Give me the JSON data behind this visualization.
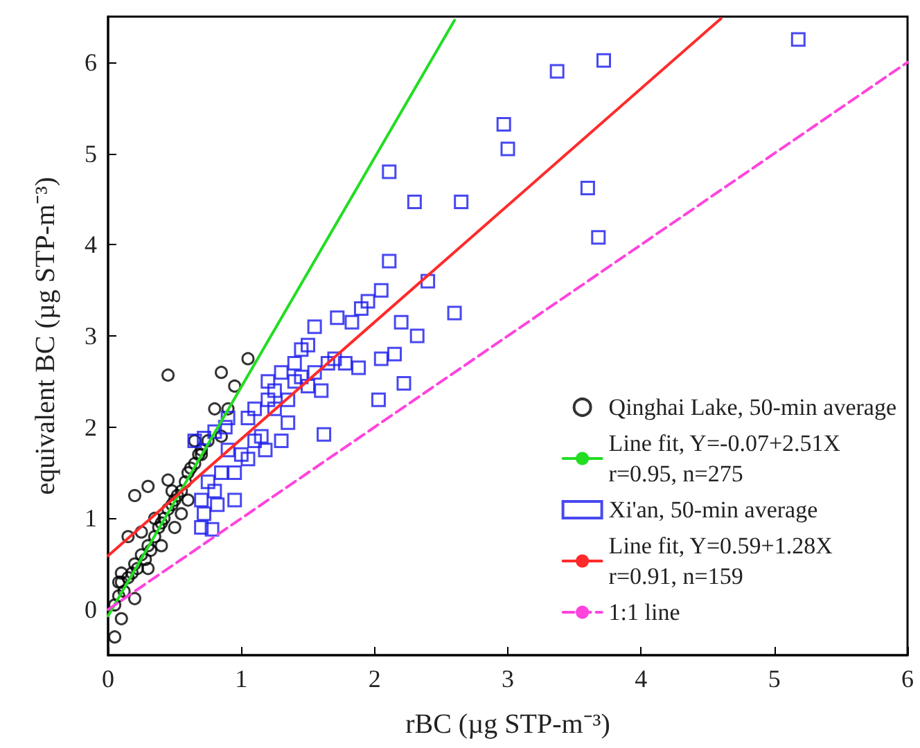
{
  "chart_data": {
    "type": "scatter",
    "xlabel": "rBC (µg STP-m⁻³)",
    "ylabel": "equivalent BC (µg STP-m⁻³)",
    "xlim": [
      0,
      6
    ],
    "xticks": [
      0,
      1,
      2,
      3,
      4,
      5,
      6
    ],
    "ylim": [
      -0.5,
      6.5
    ],
    "yticks": [
      0,
      1,
      2,
      3,
      4,
      5,
      6
    ],
    "grid": false,
    "legend": "right",
    "series": [
      {
        "name": "Qinghai Lake, 50-min average",
        "color": "#000000",
        "marker": "circle",
        "x": [
          0.05,
          0.08,
          0.1,
          0.12,
          0.15,
          0.18,
          0.2,
          0.22,
          0.25,
          0.28,
          0.3,
          0.32,
          0.35,
          0.38,
          0.4,
          0.42,
          0.45,
          0.48,
          0.5,
          0.52,
          0.55,
          0.58,
          0.6,
          0.62,
          0.65,
          0.68,
          0.7,
          0.48,
          0.45,
          0.5,
          0.4,
          0.3,
          0.2,
          0.1,
          0.08,
          0.35,
          0.25,
          0.55,
          0.6,
          0.75,
          0.45,
          0.85,
          1.05,
          0.05,
          0.1,
          0.2,
          0.3,
          0.15,
          0.95,
          0.8,
          0.9,
          0.85,
          0.65,
          0.7
        ],
        "values": [
          0.05,
          0.15,
          0.3,
          0.2,
          0.35,
          0.4,
          0.5,
          0.45,
          0.6,
          0.55,
          0.7,
          0.65,
          0.8,
          0.9,
          0.95,
          1.0,
          1.1,
          1.15,
          1.2,
          1.25,
          1.3,
          1.4,
          1.5,
          1.55,
          1.6,
          1.7,
          1.75,
          1.3,
          1.42,
          0.9,
          0.7,
          0.45,
          0.12,
          0.4,
          0.3,
          1.0,
          0.85,
          1.05,
          1.2,
          1.85,
          2.57,
          2.6,
          2.75,
          -0.3,
          -0.1,
          1.25,
          1.35,
          0.8,
          2.45,
          2.2,
          2.2,
          1.9,
          1.85,
          1.7
        ]
      },
      {
        "name": "Line fit, Y=-0.07+2.51X\nr=0.95, n=275",
        "color": "#22dd22",
        "type": "line",
        "line_style": "solid",
        "marker": "none",
        "x": [
          0,
          2.6
        ],
        "values": [
          -0.07,
          6.46
        ]
      },
      {
        "name": "Xi'an, 50-min average",
        "color": "#1a1aee",
        "marker": "square",
        "x": [
          2.11,
          2.3,
          2.65,
          2.97,
          3.0,
          3.37,
          3.72,
          3.6,
          3.68,
          5.18,
          2.11,
          2.4,
          2.6,
          2.05,
          2.2,
          2.32,
          2.15,
          2.22,
          2.03,
          1.62,
          2.05,
          1.72,
          1.83,
          1.9,
          1.95,
          1.78,
          1.88,
          1.55,
          1.5,
          1.45,
          1.4,
          1.6,
          1.55,
          1.3,
          1.25,
          1.2,
          1.1,
          1.05,
          1.15,
          1.3,
          1.35,
          1.0,
          0.95,
          0.9,
          1.05,
          0.95,
          0.8,
          0.75,
          0.7,
          0.7,
          0.78,
          0.72,
          0.82,
          0.85,
          0.88,
          0.8,
          0.65,
          0.72,
          0.9,
          1.2,
          1.4,
          1.5,
          1.65,
          1.7,
          1.25,
          1.1,
          1.18,
          1.45,
          1.35
        ],
        "values": [
          4.8,
          4.47,
          4.47,
          5.32,
          5.05,
          5.9,
          6.02,
          4.62,
          4.08,
          6.25,
          3.82,
          3.6,
          3.25,
          3.5,
          3.15,
          3.0,
          2.8,
          2.48,
          2.3,
          1.92,
          2.75,
          3.2,
          3.15,
          3.3,
          3.38,
          2.7,
          2.65,
          3.1,
          2.9,
          2.85,
          2.7,
          2.4,
          2.6,
          2.6,
          2.4,
          2.3,
          2.2,
          2.1,
          1.9,
          1.85,
          2.05,
          1.7,
          1.5,
          1.75,
          1.65,
          1.2,
          1.3,
          1.4,
          1.2,
          0.9,
          0.88,
          1.05,
          1.15,
          1.5,
          2.0,
          1.95,
          1.85,
          1.88,
          2.1,
          2.5,
          2.5,
          2.45,
          2.7,
          2.75,
          2.2,
          1.85,
          1.75,
          2.55,
          2.3
        ]
      },
      {
        "name": "Line fit, Y=0.59+1.28X\nr=0.91, n=159",
        "color": "#ff2a2a",
        "type": "line",
        "line_style": "solid",
        "marker": "none",
        "x": [
          0,
          4.6
        ],
        "values": [
          0.59,
          6.48
        ]
      },
      {
        "name": "1:1 line",
        "color": "#ff44dd",
        "type": "line",
        "line_style": "dashed",
        "marker": "none",
        "x": [
          0,
          6
        ],
        "values": [
          0,
          6
        ]
      }
    ]
  }
}
